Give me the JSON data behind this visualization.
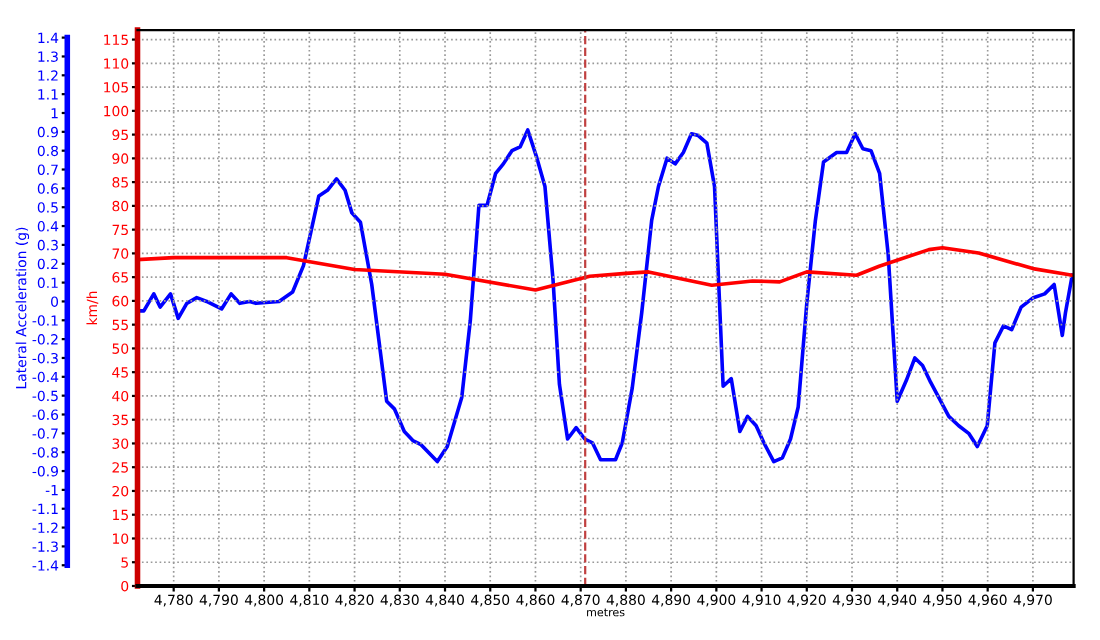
{
  "chart_data": {
    "type": "line",
    "xlabel": "metres",
    "ylabel": "km/h",
    "y2label": "Lateral Acceleration (g)",
    "series": [
      {
        "color": "#0000ff",
        "axis": "y2",
        "x": [
          4772,
          4773.4,
          4775.6,
          4777,
          4779.3,
          4781,
          4782.9,
          4785.1,
          4787.3,
          4790.6,
          4792.7,
          4794.6,
          4796.8,
          4798.2,
          4803.3,
          4806.3,
          4808.7,
          4812.1,
          4814,
          4816,
          4817.9,
          4819.4,
          4821.3,
          4823.8,
          4827.1,
          4828.8,
          4831,
          4833,
          4834.7,
          4838.3,
          4840.5,
          4843.7,
          4845.6,
          4847.5,
          4849.3,
          4851.2,
          4852.9,
          4854.8,
          4856.6,
          4858.3,
          4860.2,
          4862.1,
          4863.9,
          4865.3,
          4867.1,
          4869,
          4870.9,
          4872.6,
          4874.4,
          4877.7,
          4879.2,
          4881.4,
          4883.5,
          4885.7,
          4887.2,
          4889.1,
          4890.9,
          4892.7,
          4894.5,
          4896,
          4897.9,
          4899.6,
          4901.5,
          4903.3,
          4905.2,
          4906.9,
          4908.8,
          4910.5,
          4912.7,
          4914.6,
          4916.4,
          4918.1,
          4920,
          4921.9,
          4923.7,
          4926.6,
          4928.8,
          4930.7,
          4932.4,
          4934.2,
          4936.1,
          4938,
          4940,
          4942,
          4943.9,
          4945.6,
          4947.4,
          4949.2,
          4951.4,
          4953.6,
          4955.8,
          4957.7,
          4959.9,
          4961.6,
          4963.5,
          4965.3,
          4967.4,
          4970.1,
          4972.6,
          4974.7,
          4976.5,
          4977.2,
          4978.7
        ],
        "values": [
          -0.05,
          -0.05,
          0.04,
          -0.03,
          0.04,
          -0.09,
          -0.01,
          0.02,
          0,
          -0.04,
          0.04,
          -0.01,
          0,
          -0.01,
          0,
          0.05,
          0.19,
          0.56,
          0.59,
          0.65,
          0.59,
          0.47,
          0.42,
          0.09,
          -0.53,
          -0.57,
          -0.69,
          -0.74,
          -0.76,
          -0.85,
          -0.77,
          -0.51,
          -0.1,
          0.51,
          0.51,
          0.68,
          0.73,
          0.8,
          0.82,
          0.91,
          0.77,
          0.61,
          0.11,
          -0.44,
          -0.73,
          -0.67,
          -0.73,
          -0.75,
          -0.84,
          -0.84,
          -0.75,
          -0.46,
          -0.06,
          0.43,
          0.61,
          0.76,
          0.73,
          0.79,
          0.89,
          0.88,
          0.84,
          0.61,
          -0.45,
          -0.41,
          -0.69,
          -0.61,
          -0.66,
          -0.75,
          -0.85,
          -0.83,
          -0.73,
          -0.56,
          -0.01,
          0.43,
          0.74,
          0.79,
          0.79,
          0.89,
          0.81,
          0.8,
          0.68,
          0.25,
          -0.53,
          -0.42,
          -0.3,
          -0.34,
          -0.43,
          -0.51,
          -0.61,
          -0.66,
          -0.7,
          -0.77,
          -0.66,
          -0.22,
          -0.13,
          -0.15,
          -0.03,
          0.02,
          0.04,
          0.09,
          -0.18,
          -0.06,
          0.14
        ]
      },
      {
        "color": "#ff0000",
        "x": [
          4772,
          4780,
          4805,
          4820,
          4840,
          4860,
          4872,
          4880,
          4885,
          4899,
          4908,
          4914,
          4920,
          4931,
          4936,
          4947,
          4950,
          4958,
          4970,
          4978.7
        ],
        "values": [
          68.7,
          69.1,
          69.1,
          66.6,
          65.6,
          62.3,
          65.2,
          65.8,
          66.1,
          63.3,
          64.2,
          64.0,
          66.1,
          65.4,
          67.3,
          70.8,
          71.2,
          70.1,
          66.8,
          65.4
        ]
      }
    ],
    "xlim": [
      4772,
      4979
    ],
    "xticks": [
      {
        "value": 4780,
        "label": "4,780"
      },
      {
        "value": 4790,
        "label": "4,790"
      },
      {
        "value": 4800,
        "label": "4,800"
      },
      {
        "value": 4810,
        "label": "4,810"
      },
      {
        "value": 4820,
        "label": "4,820"
      },
      {
        "value": 4830,
        "label": "4,830"
      },
      {
        "value": 4840,
        "label": "4,840"
      },
      {
        "value": 4850,
        "label": "4,850"
      },
      {
        "value": 4860,
        "label": "4,860"
      },
      {
        "value": 4870,
        "label": "4,870"
      },
      {
        "value": 4880,
        "label": "4,880"
      },
      {
        "value": 4890,
        "label": "4,890"
      },
      {
        "value": 4900,
        "label": "4,900"
      },
      {
        "value": 4910,
        "label": "4,910"
      },
      {
        "value": 4920,
        "label": "4,920"
      },
      {
        "value": 4930,
        "label": "4,930"
      },
      {
        "value": 4940,
        "label": "4,940"
      },
      {
        "value": 4950,
        "label": "4,950"
      },
      {
        "value": 4960,
        "label": "4,960"
      },
      {
        "value": 4970,
        "label": "4,970"
      }
    ],
    "ylim": [
      0,
      117
    ],
    "yticks": [
      0,
      5,
      10,
      15,
      20,
      25,
      30,
      35,
      40,
      45,
      50,
      55,
      60,
      65,
      70,
      75,
      80,
      85,
      90,
      95,
      100,
      105,
      110,
      115
    ],
    "y2lim": [
      -1.51,
      1.44
    ],
    "y2ticks": [
      -1.4,
      -1.3,
      -1.2,
      -1.1,
      -1,
      -0.9,
      -0.8,
      -0.7,
      -0.6,
      -0.5,
      -0.4,
      -0.3,
      -0.2,
      -0.1,
      0,
      0.1,
      0.2,
      0.3,
      0.4,
      0.5,
      0.6,
      0.7,
      0.8,
      0.9,
      1,
      1.1,
      1.2,
      1.3,
      1.4
    ],
    "ref_lines": [
      {
        "axis": "x",
        "value": 4871,
        "color": "#c04040",
        "line_style": "dashed"
      }
    ],
    "grid": true,
    "marker": "none",
    "line_style": "solid"
  }
}
